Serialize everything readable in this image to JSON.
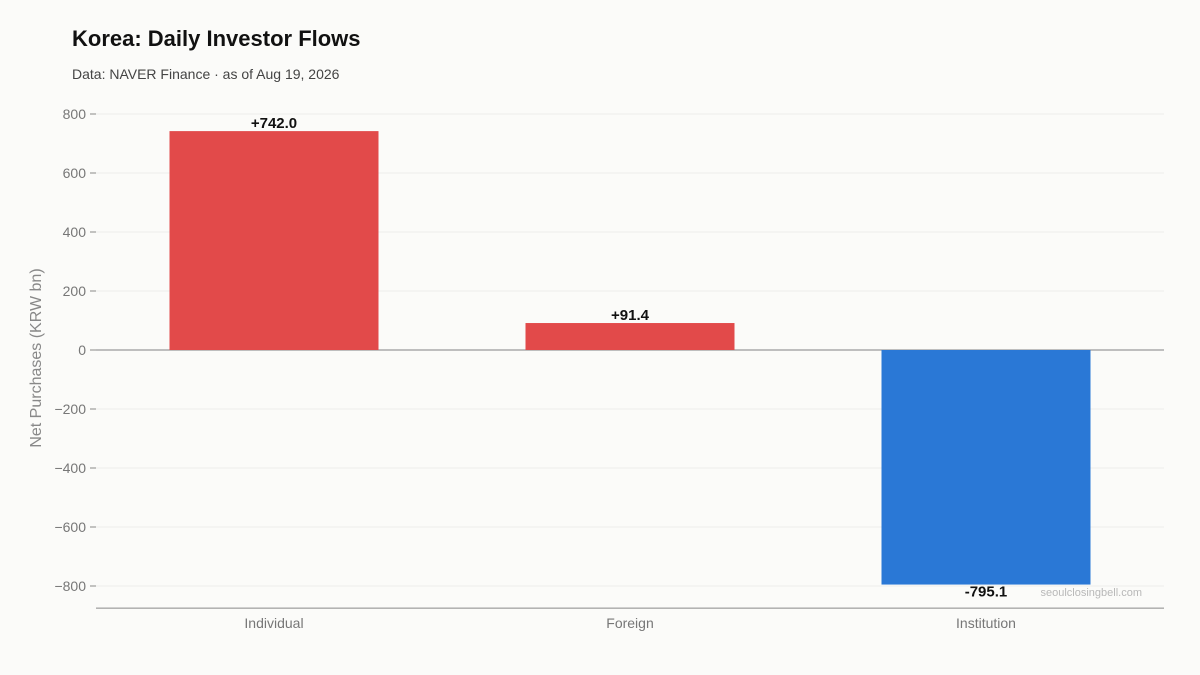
{
  "title": "Korea: Daily Investor Flows",
  "subtitle": "Data: NAVER Finance · as of Aug 19, 2026",
  "watermark": "seoulclosingbell.com",
  "colors": {
    "positive": "#e24a4a",
    "negative": "#2a78d6",
    "grid": "#eeeeea",
    "axis": "#888888",
    "zero_line": "#aaaaaa"
  },
  "chart_data": {
    "type": "bar",
    "title": "Korea: Daily Investor Flows",
    "subtitle": "Data: NAVER Finance · as of Aug 19, 2026",
    "xlabel": "",
    "ylabel": "Net Purchases (KRW bn)",
    "categories": [
      "Individual",
      "Foreign",
      "Institution"
    ],
    "values": [
      742.0,
      91.4,
      -795.1
    ],
    "value_labels": [
      "+742.0",
      "+91.4",
      "-795.1"
    ],
    "ylim": [
      -875,
      800
    ],
    "yticks": [
      800,
      600,
      400,
      200,
      0,
      -200,
      -400,
      -600,
      -800
    ],
    "ytick_labels": [
      "800",
      "600",
      "400",
      "200",
      "0",
      "−200",
      "−400",
      "−600",
      "−800"
    ],
    "grid": true,
    "legend": "none"
  }
}
